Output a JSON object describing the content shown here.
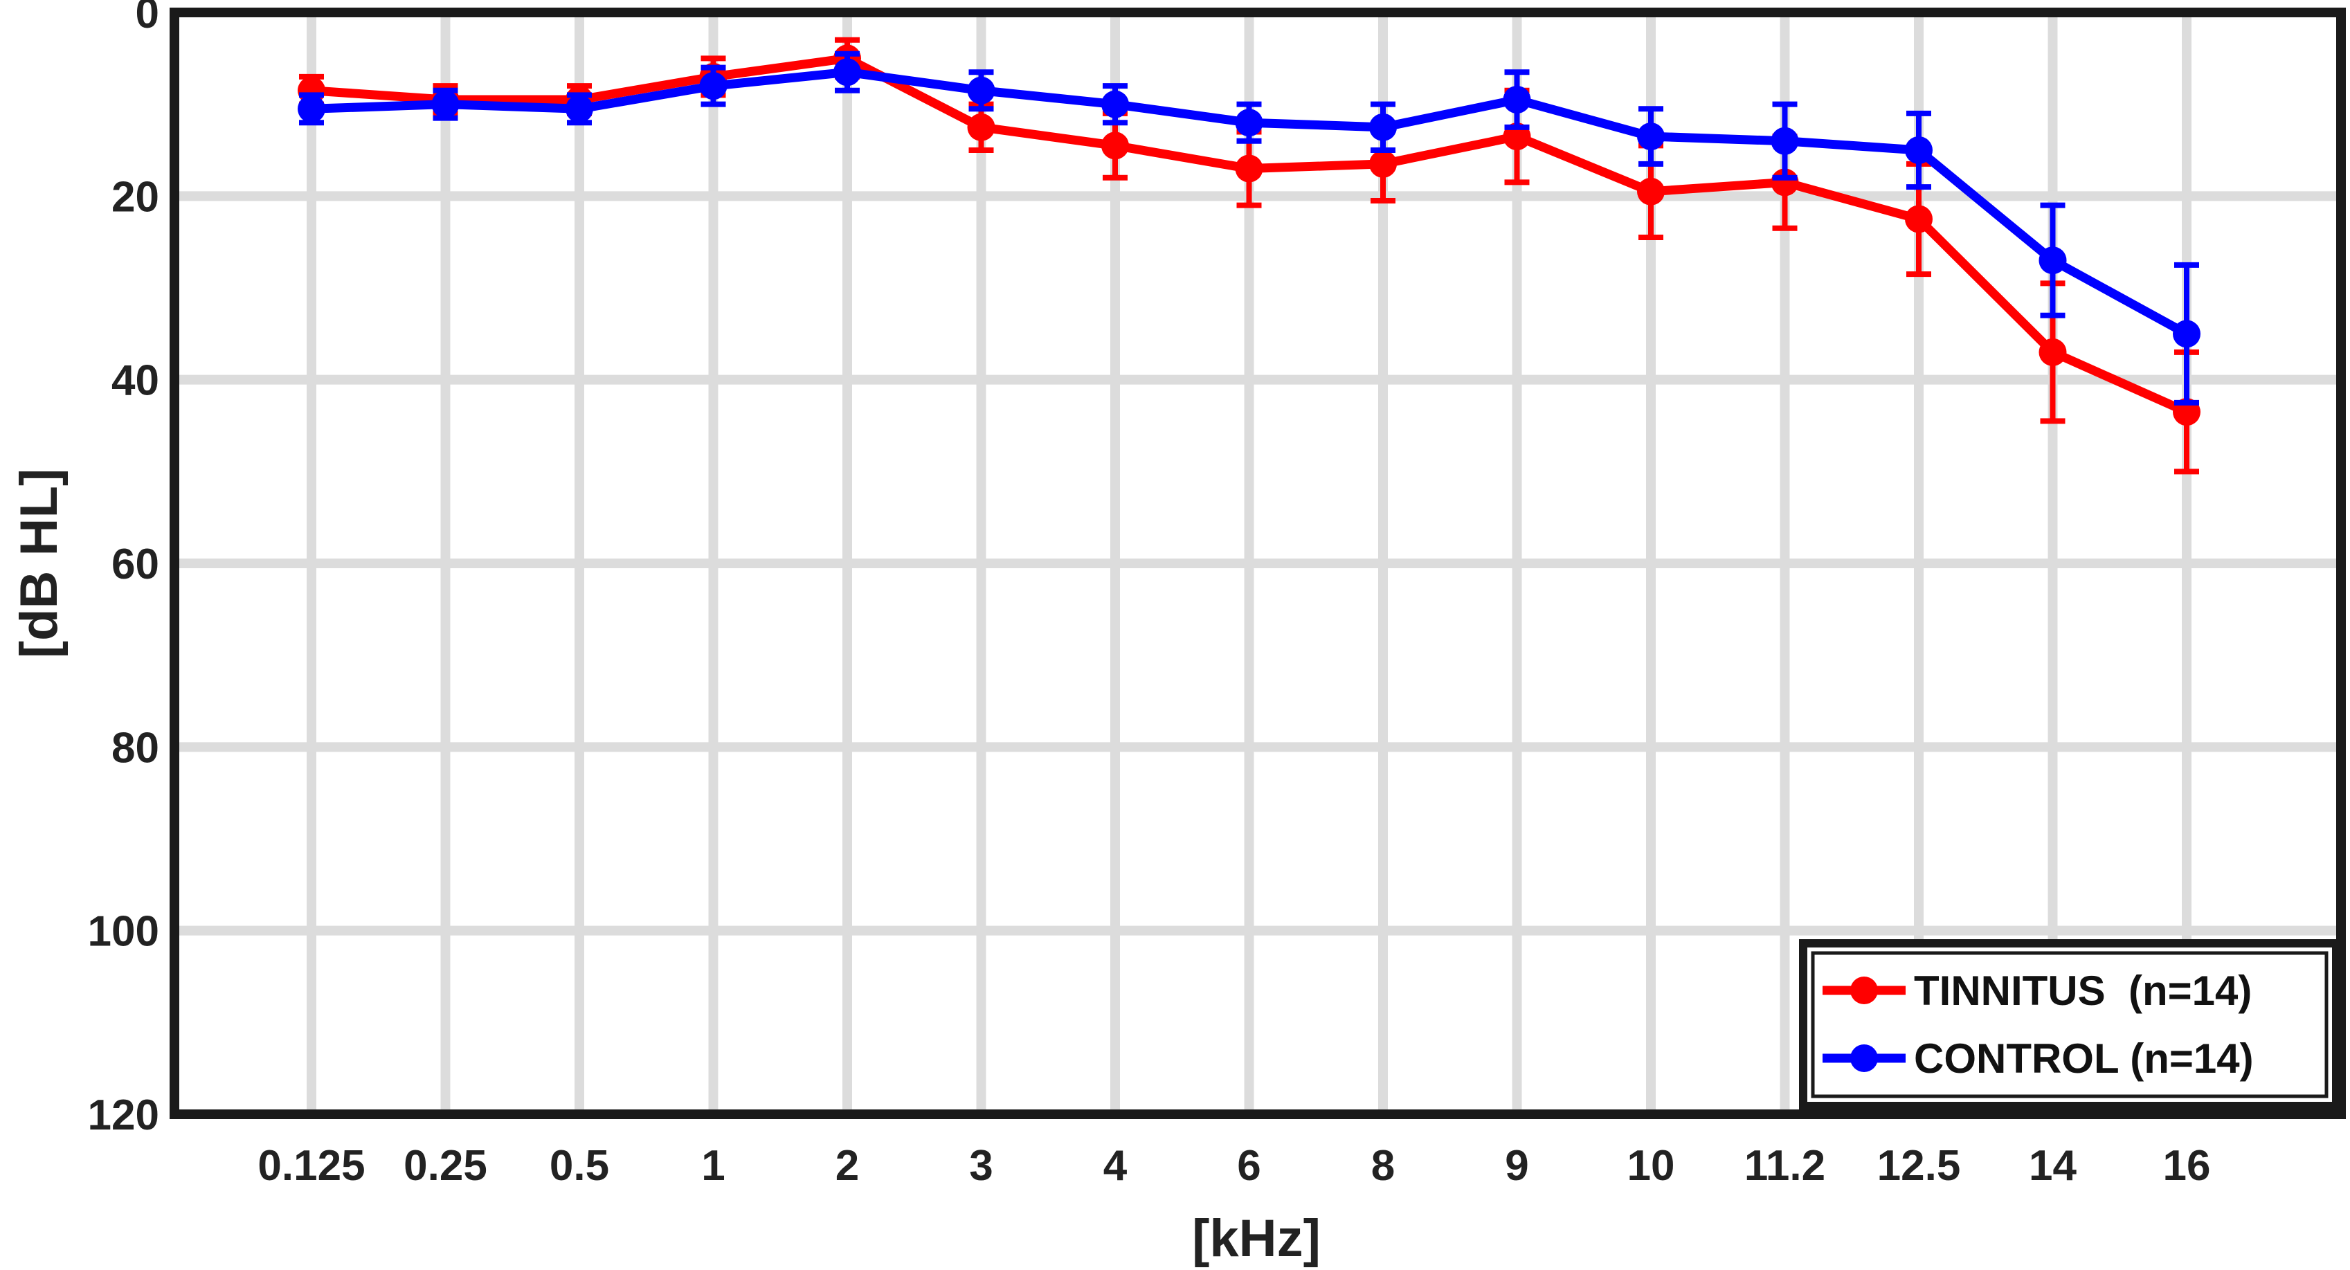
{
  "chart_data": {
    "type": "line",
    "title": "",
    "xlabel": "[kHz]",
    "ylabel": "[dB HL]",
    "categories": [
      "0.125",
      "0.25",
      "0.5",
      "1",
      "2",
      "3",
      "4",
      "6",
      "8",
      "9",
      "10",
      "11.2",
      "12.5",
      "14",
      "16"
    ],
    "y_ticks": [
      0,
      20,
      40,
      60,
      80,
      100,
      120
    ],
    "ylim": [
      0,
      120
    ],
    "y_inverted": true,
    "grid": true,
    "legend_position": "bottom-right",
    "series": [
      {
        "name": "TINNITUS  (n=14)",
        "color": "#ff0000",
        "values": [
          8.5,
          9.5,
          9.5,
          7,
          5,
          12.5,
          14.5,
          17,
          16.5,
          13.5,
          19.5,
          18.5,
          22.5,
          37,
          43.5
        ],
        "errors": [
          1.5,
          1.5,
          1.5,
          2,
          2,
          2.5,
          3.5,
          4,
          4,
          5,
          5,
          5,
          6,
          7.5,
          6.5
        ]
      },
      {
        "name": "CONTROL (n=14)",
        "color": "#0000ff",
        "values": [
          10.5,
          10,
          10.5,
          8,
          6.5,
          8.5,
          10,
          12,
          12.5,
          9.5,
          13.5,
          14,
          15,
          27,
          35
        ],
        "errors": [
          1.5,
          1.5,
          1.5,
          2,
          2,
          2,
          2,
          2,
          2.5,
          3,
          3,
          4,
          4,
          6,
          7.5
        ]
      }
    ]
  }
}
